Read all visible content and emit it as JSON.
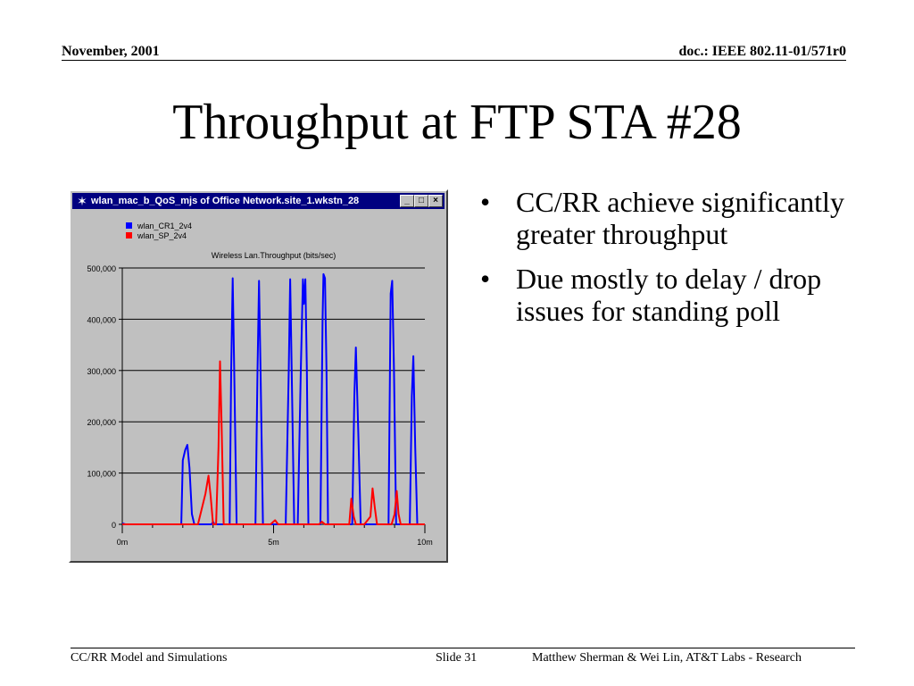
{
  "header": {
    "date": "November, 2001",
    "doc": "doc.: IEEE 802.11-01/571r0"
  },
  "slide": {
    "title": "Throughput at FTP STA #28"
  },
  "bullets": [
    "CC/RR achieve significantly greater throughput",
    "Due mostly to delay / drop issues for standing poll"
  ],
  "window": {
    "title": "wlan_mac_b_QoS_mjs of Office Network.site_1.wkstn_28",
    "minimize_glyph": "_",
    "maximize_glyph": "□",
    "close_glyph": "×",
    "icon": "network-icon"
  },
  "chart_data": {
    "type": "line",
    "title": "Wireless Lan.Throughput (bits/sec)",
    "xlabel": "",
    "ylabel": "",
    "xlim": [
      0,
      10
    ],
    "ylim": [
      0,
      500000
    ],
    "x_ticks": [
      "0m",
      "5m",
      "10m"
    ],
    "y_ticks": [
      "500,000",
      "400,000",
      "300,000",
      "200,000",
      "100,000",
      "0"
    ],
    "grid": true,
    "legend_position": "top-left",
    "series": [
      {
        "name": "wlan_CR1_2v4",
        "color": "#0000ff",
        "points": [
          [
            0,
            2000
          ],
          [
            0.1,
            0
          ],
          [
            1.95,
            0
          ],
          [
            2.0,
            125000
          ],
          [
            2.08,
            145000
          ],
          [
            2.15,
            155000
          ],
          [
            2.22,
            110000
          ],
          [
            2.3,
            20000
          ],
          [
            2.38,
            0
          ],
          [
            2.95,
            0
          ],
          [
            3.0,
            5000
          ],
          [
            3.05,
            0
          ],
          [
            3.55,
            0
          ],
          [
            3.6,
            300000
          ],
          [
            3.65,
            480000
          ],
          [
            3.7,
            300000
          ],
          [
            3.78,
            0
          ],
          [
            4.4,
            0
          ],
          [
            4.47,
            300000
          ],
          [
            4.52,
            475000
          ],
          [
            4.57,
            300000
          ],
          [
            4.65,
            0
          ],
          [
            4.9,
            0
          ],
          [
            5.3,
            0
          ],
          [
            5.4,
            0
          ],
          [
            5.5,
            300000
          ],
          [
            5.55,
            478000
          ],
          [
            5.6,
            300000
          ],
          [
            5.68,
            0
          ],
          [
            5.8,
            0
          ],
          [
            5.9,
            300000
          ],
          [
            5.97,
            478000
          ],
          [
            6.0,
            430000
          ],
          [
            6.05,
            478000
          ],
          [
            6.1,
            300000
          ],
          [
            6.15,
            0
          ],
          [
            6.55,
            0
          ],
          [
            6.62,
            400000
          ],
          [
            6.65,
            488000
          ],
          [
            6.7,
            480000
          ],
          [
            6.75,
            300000
          ],
          [
            6.8,
            0
          ],
          [
            7.6,
            0
          ],
          [
            7.67,
            250000
          ],
          [
            7.72,
            345000
          ],
          [
            7.8,
            180000
          ],
          [
            7.88,
            0
          ],
          [
            8.8,
            0
          ],
          [
            8.87,
            450000
          ],
          [
            8.92,
            475000
          ],
          [
            8.98,
            300000
          ],
          [
            9.05,
            0
          ],
          [
            9.5,
            0
          ],
          [
            9.57,
            250000
          ],
          [
            9.62,
            328000
          ],
          [
            9.68,
            150000
          ],
          [
            9.75,
            0
          ],
          [
            10,
            0
          ]
        ]
      },
      {
        "name": "wlan_SP_2v4",
        "color": "#ff0000",
        "points": [
          [
            0,
            0
          ],
          [
            1.9,
            0
          ],
          [
            2.3,
            0
          ],
          [
            2.5,
            0
          ],
          [
            2.75,
            60000
          ],
          [
            2.85,
            95000
          ],
          [
            2.92,
            55000
          ],
          [
            3.0,
            0
          ],
          [
            3.1,
            0
          ],
          [
            3.18,
            150000
          ],
          [
            3.23,
            318000
          ],
          [
            3.28,
            200000
          ],
          [
            3.35,
            0
          ],
          [
            3.5,
            0
          ],
          [
            4.9,
            0
          ],
          [
            5.05,
            8000
          ],
          [
            5.15,
            0
          ],
          [
            6.5,
            0
          ],
          [
            6.6,
            5000
          ],
          [
            6.7,
            0
          ],
          [
            7.5,
            0
          ],
          [
            7.57,
            50000
          ],
          [
            7.65,
            15000
          ],
          [
            7.72,
            0
          ],
          [
            7.8,
            0
          ],
          [
            8.0,
            0
          ],
          [
            8.2,
            15000
          ],
          [
            8.27,
            70000
          ],
          [
            8.35,
            30000
          ],
          [
            8.42,
            0
          ],
          [
            8.9,
            0
          ],
          [
            9.0,
            20000
          ],
          [
            9.07,
            65000
          ],
          [
            9.13,
            20000
          ],
          [
            9.2,
            0
          ],
          [
            10,
            0
          ]
        ]
      }
    ]
  },
  "footer": {
    "left": "CC/RR Model and Simulations",
    "slide_no": "Slide 31",
    "right": "Matthew Sherman & Wei Lin, AT&T Labs - Research"
  }
}
